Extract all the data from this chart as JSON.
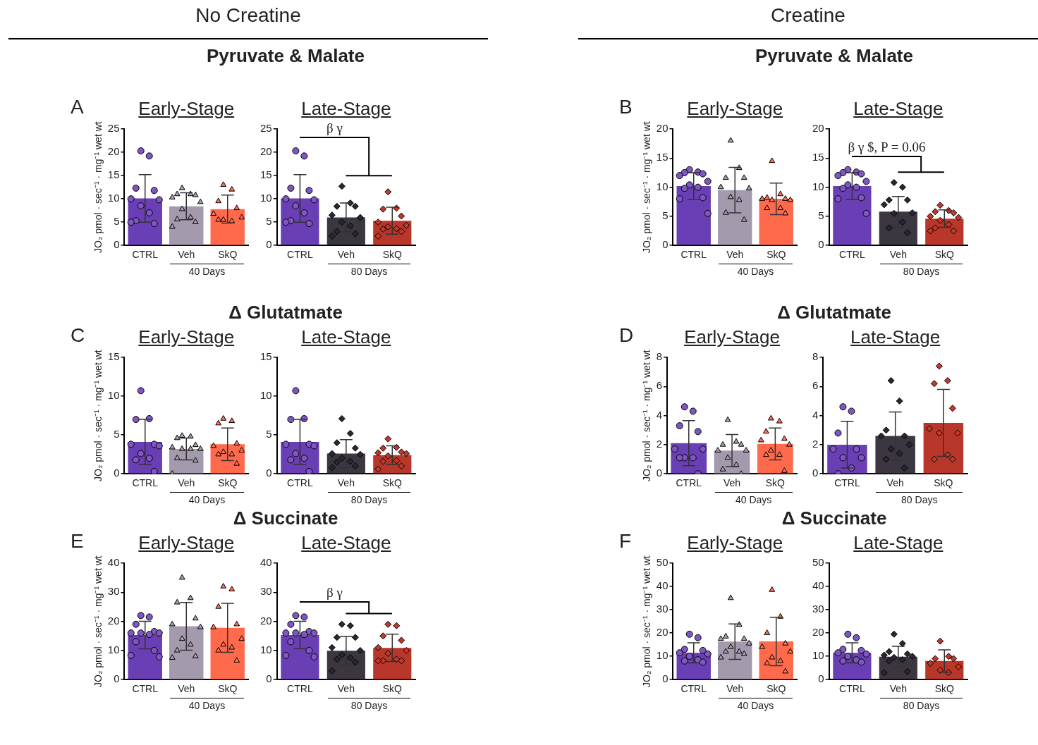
{
  "chart_data": [
    {
      "type": "bar",
      "title": "Early-Stage",
      "ylabel": "JO₂ pmol · sec⁻¹ · mg⁻¹ wet wt",
      "categories": [
        "CTRL",
        "Veh",
        "SkQ"
      ],
      "ylim": [
        0,
        25
      ],
      "yticks": [
        0,
        5,
        10,
        15,
        20,
        25
      ],
      "annotations": [
        "40 Days",
        "A",
        "No Creatine",
        "Pyruvate & Malate"
      ],
      "series": [
        {
          "type": "bar",
          "colors": [
            "#6a3fb5",
            "#a39aad",
            "#ff6a4d"
          ],
          "values": [
            10.1,
            8.4,
            7.8
          ],
          "errors": [
            5.1,
            2.9,
            3.0
          ]
        },
        {
          "type": "scatter",
          "marker": "circle",
          "color": "#7e57c2",
          "x": [
            "CTRL",
            "CTRL",
            "CTRL",
            "CTRL",
            "CTRL",
            "CTRL",
            "CTRL",
            "CTRL",
            "CTRL",
            "CTRL",
            "CTRL"
          ],
          "values": [
            20.3,
            19.2,
            12.3,
            11.8,
            10,
            9.8,
            8.5,
            7,
            5.3,
            4.7,
            5
          ]
        },
        {
          "type": "scatter",
          "marker": "triangle",
          "color": "#a59db0",
          "x": [
            "Veh",
            "Veh",
            "Veh",
            "Veh",
            "Veh",
            "Veh",
            "Veh",
            "Veh",
            "Veh",
            "Veh",
            "Veh"
          ],
          "values": [
            12.3,
            11,
            11,
            10.8,
            10.3,
            9.3,
            7.8,
            6,
            5.6,
            5,
            4
          ]
        },
        {
          "type": "scatter",
          "marker": "triangle",
          "color": "#ff6f52",
          "x": [
            "SkQ",
            "SkQ",
            "SkQ",
            "SkQ",
            "SkQ",
            "SkQ",
            "SkQ",
            "SkQ",
            "SkQ"
          ],
          "values": [
            13,
            12,
            9.5,
            8,
            6.8,
            6,
            5.5,
            5.2,
            5.5
          ]
        }
      ]
    },
    {
      "type": "bar",
      "title": "Late-Stage",
      "categories": [
        "CTRL",
        "Veh",
        "SkQ"
      ],
      "ylim": [
        0,
        25
      ],
      "yticks": [
        0,
        5,
        10,
        15,
        20,
        25
      ],
      "annotations": [
        "80 Days",
        "β γ"
      ],
      "series": [
        {
          "type": "bar",
          "colors": [
            "#6a3fb5",
            "#3b3640",
            "#b8372a"
          ],
          "values": [
            10.1,
            6.0,
            5.3
          ],
          "errors": [
            5.1,
            3.1,
            2.9
          ]
        },
        {
          "type": "scatter",
          "marker": "circle",
          "color": "#7e57c2",
          "x": [
            "CTRL",
            "CTRL",
            "CTRL",
            "CTRL",
            "CTRL",
            "CTRL",
            "CTRL",
            "CTRL",
            "CTRL",
            "CTRL",
            "CTRL"
          ],
          "values": [
            20.3,
            19.2,
            12.3,
            11.8,
            10,
            9.8,
            8.5,
            7,
            5.3,
            4.7,
            5
          ]
        },
        {
          "type": "scatter",
          "marker": "diamond",
          "color": "#2b2730",
          "x": [
            "Veh",
            "Veh",
            "Veh",
            "Veh",
            "Veh",
            "Veh",
            "Veh",
            "Veh",
            "Veh",
            "Veh",
            "Veh"
          ],
          "values": [
            12.7,
            9.1,
            8.4,
            8.4,
            6.5,
            6,
            5,
            4.2,
            3,
            2.5,
            2
          ]
        },
        {
          "type": "scatter",
          "marker": "diamond",
          "color": "#c0392b",
          "x": [
            "SkQ",
            "SkQ",
            "SkQ",
            "SkQ",
            "SkQ",
            "SkQ",
            "SkQ",
            "SkQ",
            "SkQ",
            "SkQ",
            "SkQ"
          ],
          "values": [
            11.5,
            8,
            7.8,
            6.3,
            5,
            4.3,
            4,
            3.6,
            3.5,
            3,
            2
          ]
        }
      ]
    },
    {
      "type": "bar",
      "title": "Early-Stage",
      "ylabel": "JO₂ pmol · sec⁻¹ · mg⁻¹ wet wt",
      "categories": [
        "CTRL",
        "Veh",
        "SkQ"
      ],
      "ylim": [
        0,
        20
      ],
      "yticks": [
        0,
        5,
        10,
        15,
        20
      ],
      "annotations": [
        "40 Days",
        "B",
        "Creatine",
        "Pyruvate & Malate"
      ],
      "series": [
        {
          "type": "bar",
          "colors": [
            "#6a3fb5",
            "#a39aad",
            "#ff6a4d"
          ],
          "values": [
            10.2,
            9.5,
            8.0
          ],
          "errors": [
            2.3,
            3.9,
            2.7
          ]
        },
        {
          "type": "scatter",
          "marker": "circle",
          "color": "#7e57c2",
          "x": [
            "CTRL",
            "CTRL",
            "CTRL",
            "CTRL",
            "CTRL",
            "CTRL",
            "CTRL",
            "CTRL",
            "CTRL",
            "CTRL",
            "CTRL",
            "CTRL"
          ],
          "values": [
            13,
            12.6,
            12.5,
            12.3,
            12,
            11,
            10.4,
            10,
            9.8,
            8.2,
            8,
            5.5
          ]
        },
        {
          "type": "scatter",
          "marker": "triangle",
          "color": "#a59db0",
          "x": [
            "Veh",
            "Veh",
            "Veh",
            "Veh",
            "Veh",
            "Veh",
            "Veh",
            "Veh",
            "Veh",
            "Veh"
          ],
          "values": [
            18,
            13.3,
            11.6,
            11.6,
            10,
            9.8,
            8.3,
            7.8,
            5.6,
            4.4
          ]
        },
        {
          "type": "scatter",
          "marker": "triangle",
          "color": "#ff6f52",
          "x": [
            "SkQ",
            "SkQ",
            "SkQ",
            "SkQ",
            "SkQ",
            "SkQ",
            "SkQ",
            "SkQ",
            "SkQ",
            "SkQ"
          ],
          "values": [
            14.5,
            8.8,
            8.2,
            8,
            8,
            7.8,
            7.8,
            6.4,
            6.4,
            5.5
          ]
        }
      ]
    },
    {
      "type": "bar",
      "title": "Late-Stage",
      "categories": [
        "CTRL",
        "Veh",
        "SkQ"
      ],
      "ylim": [
        0,
        20
      ],
      "yticks": [
        0,
        5,
        10,
        15,
        20
      ],
      "annotations": [
        "80 Days",
        "β γ $, P = 0.06"
      ],
      "series": [
        {
          "type": "bar",
          "colors": [
            "#6a3fb5",
            "#3b3640",
            "#b8372a"
          ],
          "values": [
            10.2,
            5.8,
            4.6
          ],
          "errors": [
            2.3,
            2.6,
            1.5
          ]
        },
        {
          "type": "scatter",
          "marker": "circle",
          "color": "#7e57c2",
          "x": [
            "CTRL",
            "CTRL",
            "CTRL",
            "CTRL",
            "CTRL",
            "CTRL",
            "CTRL",
            "CTRL",
            "CTRL",
            "CTRL",
            "CTRL",
            "CTRL"
          ],
          "values": [
            13,
            12.6,
            12.5,
            12.3,
            12,
            11,
            10.4,
            10,
            9.8,
            8.2,
            8,
            5.5
          ]
        },
        {
          "type": "scatter",
          "marker": "diamond",
          "color": "#2b2730",
          "x": [
            "Veh",
            "Veh",
            "Veh",
            "Veh",
            "Veh",
            "Veh",
            "Veh",
            "Veh",
            "Veh",
            "Veh"
          ],
          "values": [
            10.8,
            10,
            7.8,
            7.8,
            7,
            5.6,
            5.5,
            4,
            3,
            2.2
          ]
        },
        {
          "type": "scatter",
          "marker": "diamond",
          "color": "#c0392b",
          "x": [
            "SkQ",
            "SkQ",
            "SkQ",
            "SkQ",
            "SkQ",
            "SkQ",
            "SkQ",
            "SkQ",
            "SkQ",
            "SkQ",
            "SkQ"
          ],
          "values": [
            6.9,
            6,
            5.8,
            5.6,
            5,
            4.8,
            4.3,
            3.6,
            3,
            2.5,
            2.5
          ]
        }
      ]
    },
    {
      "type": "bar",
      "title": "Early-Stage",
      "ylabel": "JO₂ pmol · sec⁻¹ · mg⁻¹ wet wt",
      "categories": [
        "CTRL",
        "Veh",
        "SkQ"
      ],
      "ylim": [
        0,
        15
      ],
      "yticks": [
        0,
        5,
        10,
        15
      ],
      "annotations": [
        "40 Days",
        "C",
        "Δ Glutatmate"
      ],
      "series": [
        {
          "type": "bar",
          "colors": [
            "#6a3fb5",
            "#a39aad",
            "#ff6a4d"
          ],
          "values": [
            4.1,
            3.2,
            3.8
          ],
          "errors": [
            2.9,
            1.4,
            2.1
          ]
        },
        {
          "type": "scatter",
          "marker": "circle",
          "color": "#7e57c2",
          "x": [
            "CTRL",
            "CTRL",
            "CTRL",
            "CTRL",
            "CTRL",
            "CTRL",
            "CTRL",
            "CTRL",
            "CTRL",
            "CTRL"
          ],
          "values": [
            10.7,
            7.1,
            7,
            3.8,
            3.8,
            3.6,
            2.6,
            2,
            1.8,
            0.3
          ]
        },
        {
          "type": "scatter",
          "marker": "triangle",
          "color": "#a59db0",
          "x": [
            "Veh",
            "Veh",
            "Veh",
            "Veh",
            "Veh",
            "Veh",
            "Veh",
            "Veh",
            "Veh",
            "Veh",
            "Veh"
          ],
          "values": [
            4.9,
            4.8,
            4.6,
            3.7,
            3.4,
            3.2,
            3.2,
            3.2,
            2,
            1.7,
            0
          ]
        },
        {
          "type": "scatter",
          "marker": "triangle",
          "color": "#ff6f52",
          "x": [
            "SkQ",
            "SkQ",
            "SkQ",
            "SkQ",
            "SkQ",
            "SkQ",
            "SkQ",
            "SkQ",
            "SkQ",
            "SkQ"
          ],
          "values": [
            7.1,
            6.8,
            6.5,
            3.9,
            3.6,
            3,
            2.8,
            2.5,
            2.5,
            1.3
          ]
        }
      ]
    },
    {
      "type": "bar",
      "title": "Late-Stage",
      "categories": [
        "CTRL",
        "Veh",
        "SkQ"
      ],
      "ylim": [
        0,
        15
      ],
      "yticks": [
        0,
        5,
        10,
        15
      ],
      "annotations": [
        "80 Days"
      ],
      "series": [
        {
          "type": "bar",
          "colors": [
            "#6a3fb5",
            "#3b3640",
            "#b8372a"
          ],
          "values": [
            4.1,
            2.6,
            2.4
          ],
          "errors": [
            2.9,
            1.8,
            1.2
          ]
        },
        {
          "type": "scatter",
          "marker": "circle",
          "color": "#7e57c2",
          "x": [
            "CTRL",
            "CTRL",
            "CTRL",
            "CTRL",
            "CTRL",
            "CTRL",
            "CTRL",
            "CTRL",
            "CTRL",
            "CTRL"
          ],
          "values": [
            10.7,
            7.1,
            7,
            3.8,
            3.8,
            3.6,
            2.6,
            2,
            1.8,
            0.3
          ]
        },
        {
          "type": "scatter",
          "marker": "diamond",
          "color": "#2b2730",
          "x": [
            "Veh",
            "Veh",
            "Veh",
            "Veh",
            "Veh",
            "Veh",
            "Veh",
            "Veh",
            "Veh",
            "Veh",
            "Veh"
          ],
          "values": [
            7.1,
            5.2,
            4,
            3.3,
            2.6,
            2.5,
            2,
            1.6,
            1.5,
            1,
            0.8
          ]
        },
        {
          "type": "scatter",
          "marker": "diamond",
          "color": "#c0392b",
          "x": [
            "SkQ",
            "SkQ",
            "SkQ",
            "SkQ",
            "SkQ",
            "SkQ",
            "SkQ",
            "SkQ",
            "SkQ",
            "SkQ",
            "SkQ"
          ],
          "values": [
            4.5,
            3.4,
            3.3,
            2.8,
            2.7,
            2.6,
            2.3,
            1.7,
            1.6,
            1,
            0.6
          ]
        }
      ]
    },
    {
      "type": "bar",
      "title": "Early-Stage",
      "ylabel": "JO₂ pmol · sec⁻¹ · mg⁻¹ wet wt",
      "categories": [
        "CTRL",
        "Veh",
        "SkQ"
      ],
      "ylim": [
        0,
        8
      ],
      "yticks": [
        0,
        2,
        4,
        6,
        8
      ],
      "annotations": [
        "40 Days",
        "D",
        "Δ Glutatmate"
      ],
      "series": [
        {
          "type": "bar",
          "colors": [
            "#6a3fb5",
            "#a39aad",
            "#ff6a4d"
          ],
          "values": [
            2.1,
            1.6,
            2.05
          ],
          "errors": [
            1.55,
            1.1,
            1.1
          ]
        },
        {
          "type": "scatter",
          "marker": "circle",
          "color": "#7e57c2",
          "x": [
            "CTRL",
            "CTRL",
            "CTRL",
            "CTRL",
            "CTRL",
            "CTRL",
            "CTRL",
            "CTRL",
            "CTRL",
            "CTRL"
          ],
          "values": [
            4.6,
            4.3,
            3.3,
            2.9,
            1.7,
            1.7,
            1.1,
            1.1,
            1.1,
            0
          ]
        },
        {
          "type": "scatter",
          "marker": "triangle",
          "color": "#a59db0",
          "x": [
            "Veh",
            "Veh",
            "Veh",
            "Veh",
            "Veh",
            "Veh",
            "Veh",
            "Veh",
            "Veh",
            "Veh"
          ],
          "values": [
            3.7,
            2.2,
            2,
            2,
            1.6,
            1.6,
            1.1,
            0.6,
            0.3,
            0
          ]
        },
        {
          "type": "scatter",
          "marker": "triangle",
          "color": "#ff6f52",
          "x": [
            "SkQ",
            "SkQ",
            "SkQ",
            "SkQ",
            "SkQ",
            "SkQ",
            "SkQ",
            "SkQ",
            "SkQ",
            "SkQ"
          ],
          "values": [
            3.8,
            3.6,
            2.9,
            2.4,
            2.3,
            2,
            1.6,
            1.3,
            1.3,
            0.2
          ]
        }
      ]
    },
    {
      "type": "bar",
      "title": "Late-Stage",
      "categories": [
        "CTRL",
        "Veh",
        "SkQ"
      ],
      "ylim": [
        0,
        8
      ],
      "yticks": [
        0,
        2,
        4,
        6,
        8
      ],
      "annotations": [
        "80 Days"
      ],
      "series": [
        {
          "type": "bar",
          "colors": [
            "#6a3fb5",
            "#3b3640",
            "#b8372a"
          ],
          "values": [
            2.0,
            2.6,
            3.5
          ],
          "errors": [
            1.6,
            1.65,
            2.3
          ]
        },
        {
          "type": "scatter",
          "marker": "circle",
          "color": "#7e57c2",
          "x": [
            "CTRL",
            "CTRL",
            "CTRL",
            "CTRL",
            "CTRL",
            "CTRL",
            "CTRL",
            "CTRL",
            "CTRL"
          ],
          "values": [
            4.6,
            4.3,
            2.8,
            1.7,
            1.7,
            1.1,
            1.1,
            0.4,
            0
          ]
        },
        {
          "type": "scatter",
          "marker": "diamond",
          "color": "#2b2730",
          "x": [
            "Veh",
            "Veh",
            "Veh",
            "Veh",
            "Veh",
            "Veh",
            "Veh",
            "Veh",
            "Veh",
            "Veh"
          ],
          "values": [
            6.4,
            5,
            3,
            2.6,
            2.6,
            2,
            1.7,
            1.4,
            1,
            0.4
          ]
        },
        {
          "type": "scatter",
          "marker": "diamond",
          "color": "#c0392b",
          "x": [
            "SkQ",
            "SkQ",
            "SkQ",
            "SkQ",
            "SkQ",
            "SkQ",
            "SkQ",
            "SkQ",
            "SkQ",
            "SkQ"
          ],
          "values": [
            7.4,
            6.4,
            6.2,
            4.5,
            3.1,
            2.8,
            2.8,
            1.3,
            1,
            1
          ]
        }
      ]
    },
    {
      "type": "bar",
      "title": "Early-Stage",
      "ylabel": "JO₂ pmol · sec⁻¹ · mg⁻¹ wet wt",
      "categories": [
        "CTRL",
        "Veh",
        "SkQ"
      ],
      "ylim": [
        0,
        40
      ],
      "yticks": [
        0,
        10,
        20,
        30,
        40
      ],
      "annotations": [
        "40 Days",
        "E",
        "Δ Succinate"
      ],
      "series": [
        {
          "type": "bar",
          "colors": [
            "#6a3fb5",
            "#a39aad",
            "#ff6a4d"
          ],
          "values": [
            15.3,
            18.3,
            17.8
          ],
          "errors": [
            4.7,
            8.2,
            8.4
          ]
        },
        {
          "type": "scatter",
          "marker": "circle",
          "color": "#7e57c2",
          "x": [
            "CTRL",
            "CTRL",
            "CTRL",
            "CTRL",
            "CTRL",
            "CTRL",
            "CTRL",
            "CTRL",
            "CTRL",
            "CTRL",
            "CTRL",
            "CTRL"
          ],
          "values": [
            22,
            21.5,
            19,
            16.5,
            16,
            16,
            16,
            15.5,
            13,
            10,
            8.3,
            7.8
          ]
        },
        {
          "type": "scatter",
          "marker": "triangle",
          "color": "#a59db0",
          "x": [
            "Veh",
            "Veh",
            "Veh",
            "Veh",
            "Veh",
            "Veh",
            "Veh",
            "Veh",
            "Veh",
            "Veh",
            "Veh"
          ],
          "values": [
            35,
            28,
            26.5,
            21,
            19,
            18,
            14,
            12,
            10,
            8,
            7.5
          ]
        },
        {
          "type": "scatter",
          "marker": "triangle",
          "color": "#ff6f52",
          "x": [
            "SkQ",
            "SkQ",
            "SkQ",
            "SkQ",
            "SkQ",
            "SkQ",
            "SkQ",
            "SkQ",
            "SkQ",
            "SkQ"
          ],
          "values": [
            32,
            31,
            25,
            19,
            18,
            14,
            12,
            11,
            10,
            6.5
          ]
        }
      ]
    },
    {
      "type": "bar",
      "title": "Late-Stage",
      "categories": [
        "CTRL",
        "Veh",
        "SkQ"
      ],
      "ylim": [
        0,
        40
      ],
      "yticks": [
        0,
        10,
        20,
        30,
        40
      ],
      "annotations": [
        "80 Days",
        "β γ"
      ],
      "series": [
        {
          "type": "bar",
          "colors": [
            "#6a3fb5",
            "#3b3640",
            "#b8372a"
          ],
          "values": [
            15.3,
            9.9,
            10.9
          ],
          "errors": [
            4.7,
            4.9,
            4.7
          ]
        },
        {
          "type": "scatter",
          "marker": "circle",
          "color": "#7e57c2",
          "x": [
            "CTRL",
            "CTRL",
            "CTRL",
            "CTRL",
            "CTRL",
            "CTRL",
            "CTRL",
            "CTRL",
            "CTRL",
            "CTRL",
            "CTRL",
            "CTRL"
          ],
          "values": [
            22,
            21.5,
            19,
            16.5,
            16,
            16,
            16,
            15.5,
            13,
            10,
            8.3,
            7.8
          ]
        },
        {
          "type": "scatter",
          "marker": "diamond",
          "color": "#2b2730",
          "x": [
            "Veh",
            "Veh",
            "Veh",
            "Veh",
            "Veh",
            "Veh",
            "Veh",
            "Veh",
            "Veh",
            "Veh",
            "Veh"
          ],
          "values": [
            19,
            18.5,
            14.5,
            14.5,
            11,
            10,
            8.5,
            7.5,
            7,
            6,
            3
          ]
        },
        {
          "type": "scatter",
          "marker": "diamond",
          "color": "#c0392b",
          "x": [
            "SkQ",
            "SkQ",
            "SkQ",
            "SkQ",
            "SkQ",
            "SkQ",
            "SkQ",
            "SkQ",
            "SkQ",
            "SkQ",
            "SkQ"
          ],
          "values": [
            19,
            18.5,
            15,
            13.5,
            11,
            10,
            9,
            7,
            6.5,
            6.5,
            6.5
          ]
        }
      ]
    },
    {
      "type": "bar",
      "title": "Early-Stage",
      "ylabel": "JO₂ pmol · sec⁻¹ · mg⁻¹ wet wt",
      "categories": [
        "CTRL",
        "Veh",
        "SkQ"
      ],
      "ylim": [
        0,
        50
      ],
      "yticks": [
        0,
        10,
        20,
        30,
        40,
        50
      ],
      "annotations": [
        "40 Days",
        "F",
        "Δ Succinate"
      ],
      "series": [
        {
          "type": "bar",
          "colors": [
            "#6a3fb5",
            "#a39aad",
            "#ff6a4d"
          ],
          "values": [
            11.5,
            16.3,
            16.4
          ],
          "errors": [
            4.3,
            7.6,
            10.4
          ]
        },
        {
          "type": "scatter",
          "marker": "circle",
          "color": "#7e57c2",
          "x": [
            "CTRL",
            "CTRL",
            "CTRL",
            "CTRL",
            "CTRL",
            "CTRL",
            "CTRL",
            "CTRL",
            "CTRL",
            "CTRL"
          ],
          "values": [
            19.5,
            18,
            13,
            12.5,
            11.5,
            11,
            10,
            8.5,
            8,
            7.5
          ]
        },
        {
          "type": "scatter",
          "marker": "triangle",
          "color": "#a59db0",
          "x": [
            "Veh",
            "Veh",
            "Veh",
            "Veh",
            "Veh",
            "Veh",
            "Veh",
            "Veh",
            "Veh",
            "Veh",
            "Veh"
          ],
          "values": [
            35,
            23.5,
            18.5,
            17.5,
            17.5,
            15.5,
            14,
            12,
            12,
            11,
            9.5
          ]
        },
        {
          "type": "scatter",
          "marker": "triangle",
          "color": "#ff6f52",
          "x": [
            "SkQ",
            "SkQ",
            "SkQ",
            "SkQ",
            "SkQ",
            "SkQ",
            "SkQ",
            "SkQ",
            "SkQ",
            "SkQ"
          ],
          "values": [
            38.5,
            27,
            20,
            15.5,
            14,
            12,
            9.5,
            8,
            7,
            3.5
          ]
        }
      ]
    },
    {
      "type": "bar",
      "title": "Late-Stage",
      "categories": [
        "CTRL",
        "Veh",
        "SkQ"
      ],
      "ylim": [
        0,
        50
      ],
      "yticks": [
        0,
        10,
        20,
        30,
        40,
        50
      ],
      "annotations": [
        "80 Days"
      ],
      "series": [
        {
          "type": "bar",
          "colors": [
            "#6a3fb5",
            "#3b3640",
            "#b8372a"
          ],
          "values": [
            11.5,
            9.8,
            8.0
          ],
          "errors": [
            4.3,
            4.5,
            4.8
          ]
        },
        {
          "type": "scatter",
          "marker": "circle",
          "color": "#7e57c2",
          "x": [
            "CTRL",
            "CTRL",
            "CTRL",
            "CTRL",
            "CTRL",
            "CTRL",
            "CTRL",
            "CTRL",
            "CTRL",
            "CTRL"
          ],
          "values": [
            19.5,
            18,
            13,
            12.5,
            11.5,
            11,
            10,
            8.5,
            8,
            7.5
          ]
        },
        {
          "type": "scatter",
          "marker": "diamond",
          "color": "#2b2730",
          "x": [
            "Veh",
            "Veh",
            "Veh",
            "Veh",
            "Veh",
            "Veh",
            "Veh",
            "Veh",
            "Veh",
            "Veh",
            "Veh"
          ],
          "values": [
            19.5,
            15.5,
            12,
            11,
            10.5,
            10,
            9.5,
            8.5,
            8,
            3.5,
            3
          ]
        },
        {
          "type": "scatter",
          "marker": "diamond",
          "color": "#c0392b",
          "x": [
            "SkQ",
            "SkQ",
            "SkQ",
            "SkQ",
            "SkQ",
            "SkQ",
            "SkQ",
            "SkQ"
          ],
          "values": [
            16.5,
            10,
            9,
            9,
            7,
            5.5,
            4,
            3
          ]
        }
      ]
    }
  ]
}
